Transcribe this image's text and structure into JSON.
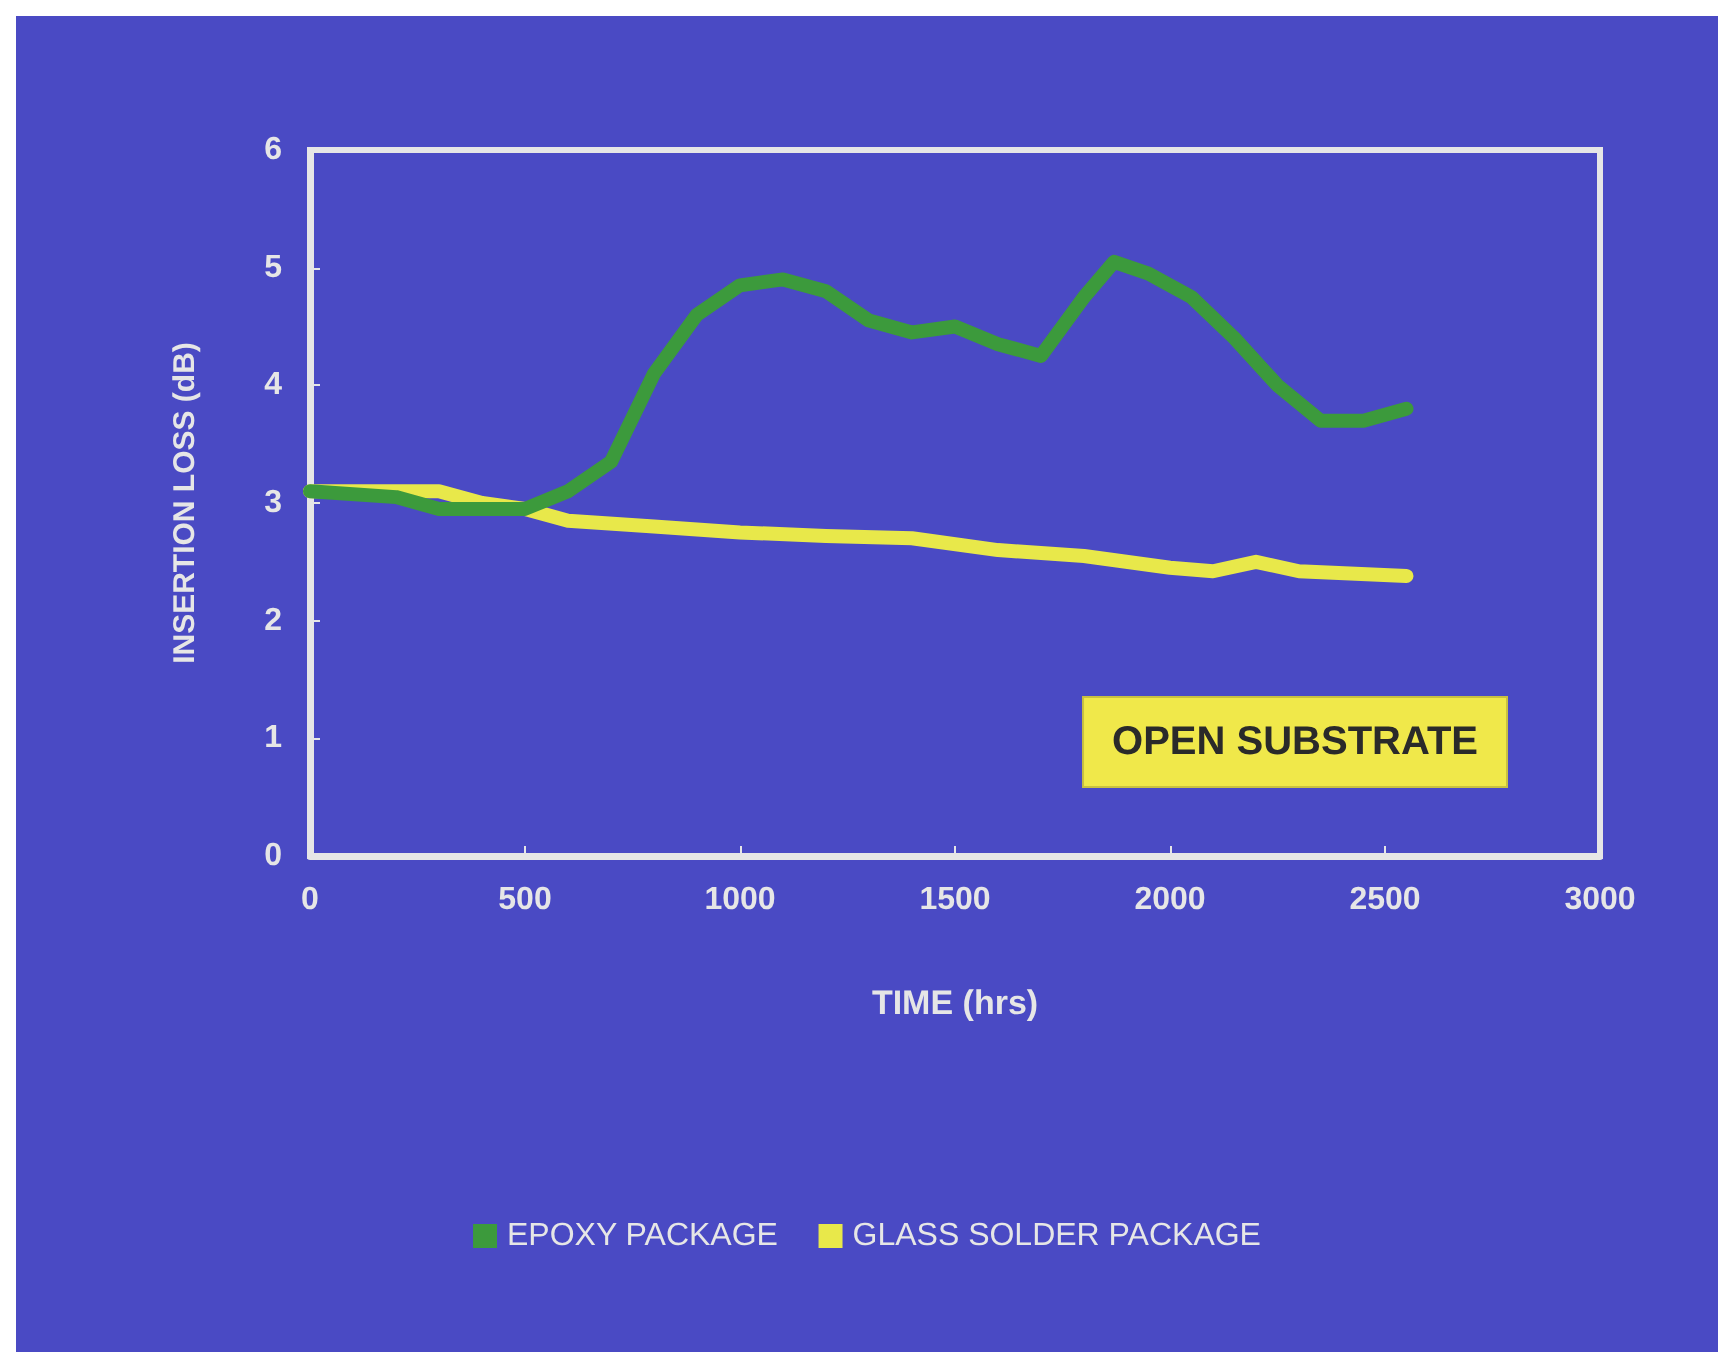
{
  "chart_data": {
    "type": "line",
    "xlabel": "TIME (hrs)",
    "ylabel": "INSERTION LOSS (dB)",
    "xlim": [
      0,
      3000
    ],
    "xticks": [
      0,
      500,
      1000,
      1500,
      2000,
      2500,
      3000
    ],
    "ylim": [
      0,
      6
    ],
    "yticks": [
      0,
      1,
      2,
      3,
      4,
      5,
      6
    ],
    "grid": false,
    "legend": "bottom",
    "line_style": "solid",
    "annotations": [
      "OPEN SUBSTRATE"
    ],
    "series": [
      {
        "name": "EPOXY PACKAGE",
        "color": "#3c9a3c",
        "x": [
          0,
          200,
          300,
          500,
          600,
          700,
          800,
          900,
          1000,
          1100,
          1200,
          1300,
          1400,
          1500,
          1600,
          1700,
          1800,
          1870,
          1950,
          2050,
          2150,
          2250,
          2350,
          2450,
          2550
        ],
        "values": [
          3.1,
          3.05,
          2.95,
          2.95,
          3.1,
          3.35,
          4.1,
          4.6,
          4.85,
          4.9,
          4.8,
          4.55,
          4.45,
          4.5,
          4.35,
          4.25,
          4.75,
          5.05,
          4.95,
          4.75,
          4.4,
          4.0,
          3.7,
          3.7,
          3.8
        ]
      },
      {
        "name": "GLASS SOLDER PACKAGE",
        "color": "#e8e84a",
        "x": [
          0,
          200,
          300,
          400,
          500,
          600,
          800,
          1000,
          1200,
          1400,
          1600,
          1800,
          2000,
          2100,
          2200,
          2300,
          2550
        ],
        "values": [
          3.1,
          3.1,
          3.1,
          3.0,
          2.95,
          2.85,
          2.8,
          2.75,
          2.72,
          2.7,
          2.6,
          2.55,
          2.45,
          2.42,
          2.5,
          2.42,
          2.38
        ]
      }
    ]
  }
}
